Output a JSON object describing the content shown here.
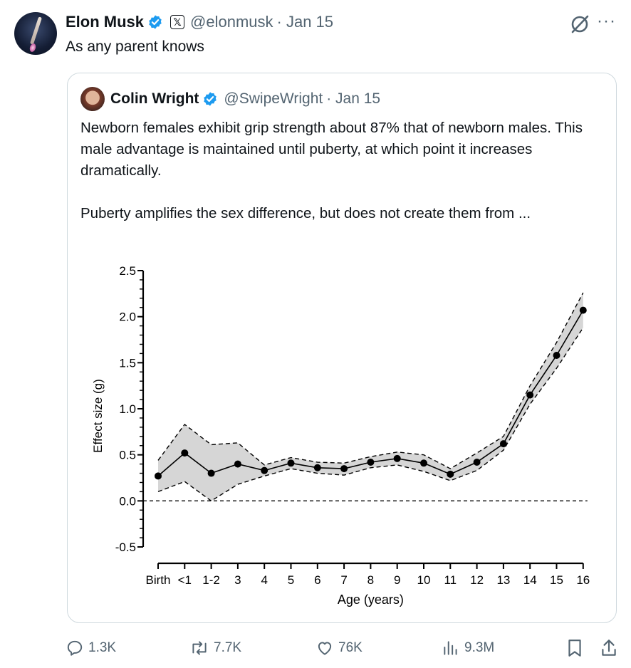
{
  "tweet": {
    "author_name": "Elon Musk",
    "author_handle": "@elonmusk",
    "date": "· Jan 15",
    "text": "As any parent knows",
    "x_badge": "𝕏"
  },
  "quote": {
    "author_name": "Colin Wright",
    "author_handle": "@SwipeWright",
    "date": "· Jan 15",
    "paragraph1": "Newborn females exhibit grip strength about 87% that of newborn males. This male advantage is maintained until puberty, at which point it increases dramatically.",
    "paragraph2": "Puberty amplifies the sex difference, but does not create them from ..."
  },
  "chart_data": {
    "type": "line",
    "title": "",
    "xlabel": "Age (years)",
    "ylabel": "Effect size (g)",
    "categories": [
      "Birth",
      "<1",
      "1-2",
      "3",
      "4",
      "5",
      "6",
      "7",
      "8",
      "9",
      "10",
      "11",
      "12",
      "13",
      "14",
      "15",
      "16"
    ],
    "series": [
      {
        "values": [
          0.27,
          0.52,
          0.3,
          0.4,
          0.33,
          0.41,
          0.36,
          0.35,
          0.42,
          0.46,
          0.41,
          0.29,
          0.42,
          0.62,
          1.15,
          1.58,
          2.07
        ]
      }
    ],
    "ci_upper": [
      0.44,
      0.83,
      0.61,
      0.63,
      0.39,
      0.47,
      0.42,
      0.41,
      0.48,
      0.53,
      0.5,
      0.35,
      0.52,
      0.7,
      1.25,
      1.72,
      2.26
    ],
    "ci_lower": [
      0.1,
      0.21,
      0.0,
      0.18,
      0.27,
      0.35,
      0.3,
      0.28,
      0.36,
      0.39,
      0.32,
      0.22,
      0.33,
      0.55,
      1.05,
      1.44,
      1.88
    ],
    "ylim": [
      -0.5,
      2.5
    ],
    "yticks": [
      "-0.5",
      "0.0",
      "0.5",
      "1.0",
      "1.5",
      "2.0",
      "2.5"
    ],
    "reference_line": 0.0,
    "grid": false
  },
  "actions": {
    "replies": "1.3K",
    "reposts": "7.7K",
    "likes": "76K",
    "views": "9.3M"
  },
  "colors": {
    "verified": "#1d9bf0",
    "muted": "#536471",
    "text": "#0f1419",
    "ci_fill": "#d6d6d6"
  },
  "icons": {
    "verified": "verified-badge-icon",
    "grok": "grok-icon",
    "more": "more-icon",
    "reply": "reply-icon",
    "repost": "repost-icon",
    "like": "like-icon",
    "views": "views-icon",
    "bookmark": "bookmark-icon",
    "share": "share-icon"
  }
}
